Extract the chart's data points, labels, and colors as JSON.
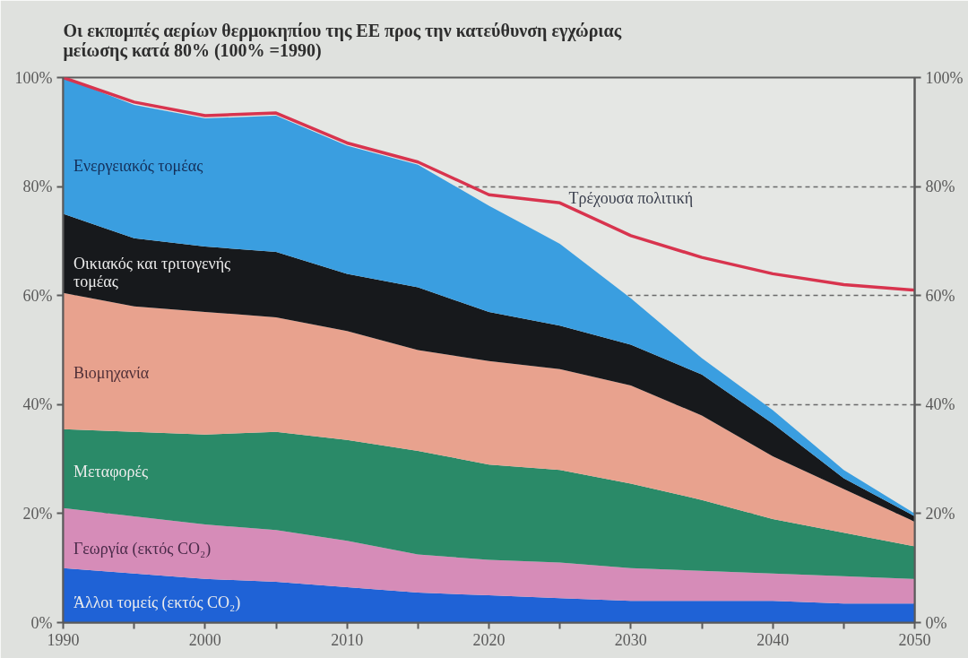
{
  "chart_data": {
    "type": "area",
    "stacked": true,
    "title": "Οι εκπομπές αερίων θερμοκηπίου της ΕΕ προς την κατεύθυνση εγχώριας μείωσης κατά 80% (100% =1990)",
    "x": [
      1990,
      1995,
      2000,
      2005,
      2010,
      2015,
      2020,
      2025,
      2030,
      2035,
      2040,
      2045,
      2050
    ],
    "xlim": [
      1990,
      2050
    ],
    "xticks": [
      1990,
      {
        "value": 1995,
        "label": null
      },
      2000,
      {
        "value": 2005,
        "label": null
      },
      2010,
      {
        "value": 2015,
        "label": null
      },
      2020,
      {
        "value": 2025,
        "label": null
      },
      2030,
      {
        "value": 2035,
        "label": null
      },
      2040,
      {
        "value": 2045,
        "label": null
      },
      2050
    ],
    "ylim": [
      0,
      100
    ],
    "yticks": [
      {
        "value": 0,
        "label": "0%"
      },
      {
        "value": 20,
        "label": "20%"
      },
      {
        "value": 40,
        "label": "40%"
      },
      {
        "value": 60,
        "label": "60%"
      },
      {
        "value": 80,
        "label": "80%"
      },
      {
        "value": 100,
        "label": "100%"
      }
    ],
    "y2lim": [
      0,
      100
    ],
    "y2ticks": [
      {
        "value": 0,
        "label": "0%"
      },
      {
        "value": 20,
        "label": "20%"
      },
      {
        "value": 40,
        "label": "40%"
      },
      {
        "value": 60,
        "label": "60%"
      },
      {
        "value": 80,
        "label": "80%"
      },
      {
        "value": 100,
        "label": "100%"
      }
    ],
    "grid": "y",
    "series": [
      {
        "name": "Άλλοι τομείς (εκτός CO₂)",
        "color": "#1f62d6",
        "values": [
          10,
          9,
          8,
          7.5,
          6.5,
          5.5,
          5,
          4.5,
          4,
          4,
          4,
          3.5,
          3.5
        ]
      },
      {
        "name": "Γεωργία (εκτός CO₂)",
        "color": "#d68cb8",
        "values": [
          11,
          10.5,
          10,
          9.5,
          8.5,
          7,
          6.5,
          6.5,
          6,
          5.5,
          5,
          5,
          4.5
        ]
      },
      {
        "name": "Μεταφορές",
        "color": "#2a8a68",
        "values": [
          14.5,
          15.5,
          16.5,
          18,
          18.5,
          19,
          17.5,
          17,
          15.5,
          13,
          10,
          8,
          6
        ]
      },
      {
        "name": "Βιομηχανία",
        "color": "#e8a28e",
        "values": [
          25,
          23,
          22.5,
          21,
          20,
          18.5,
          19,
          18.5,
          18,
          15.5,
          11.5,
          8,
          4.5
        ]
      },
      {
        "name": "Οικιακός και τριτογενής τομέας",
        "color": "#17191c",
        "values": [
          14.5,
          12.5,
          12,
          12,
          10.5,
          11.5,
          9,
          8,
          7.5,
          7.5,
          6,
          2,
          1
        ]
      },
      {
        "name": "Ενεργειακός τομέας",
        "color": "#3a9ee0",
        "values": [
          25,
          24.5,
          23.5,
          25,
          23.5,
          22.5,
          19.5,
          15,
          8.5,
          3,
          2.5,
          1.5,
          0.5
        ]
      },
      {
        "name": "Τρέχουσα πολιτική",
        "type": "line",
        "color": "#d8344e",
        "values": [
          100,
          95.5,
          93,
          93.5,
          88,
          84.5,
          78.5,
          77,
          71,
          67,
          64,
          62,
          61
        ]
      }
    ]
  }
}
